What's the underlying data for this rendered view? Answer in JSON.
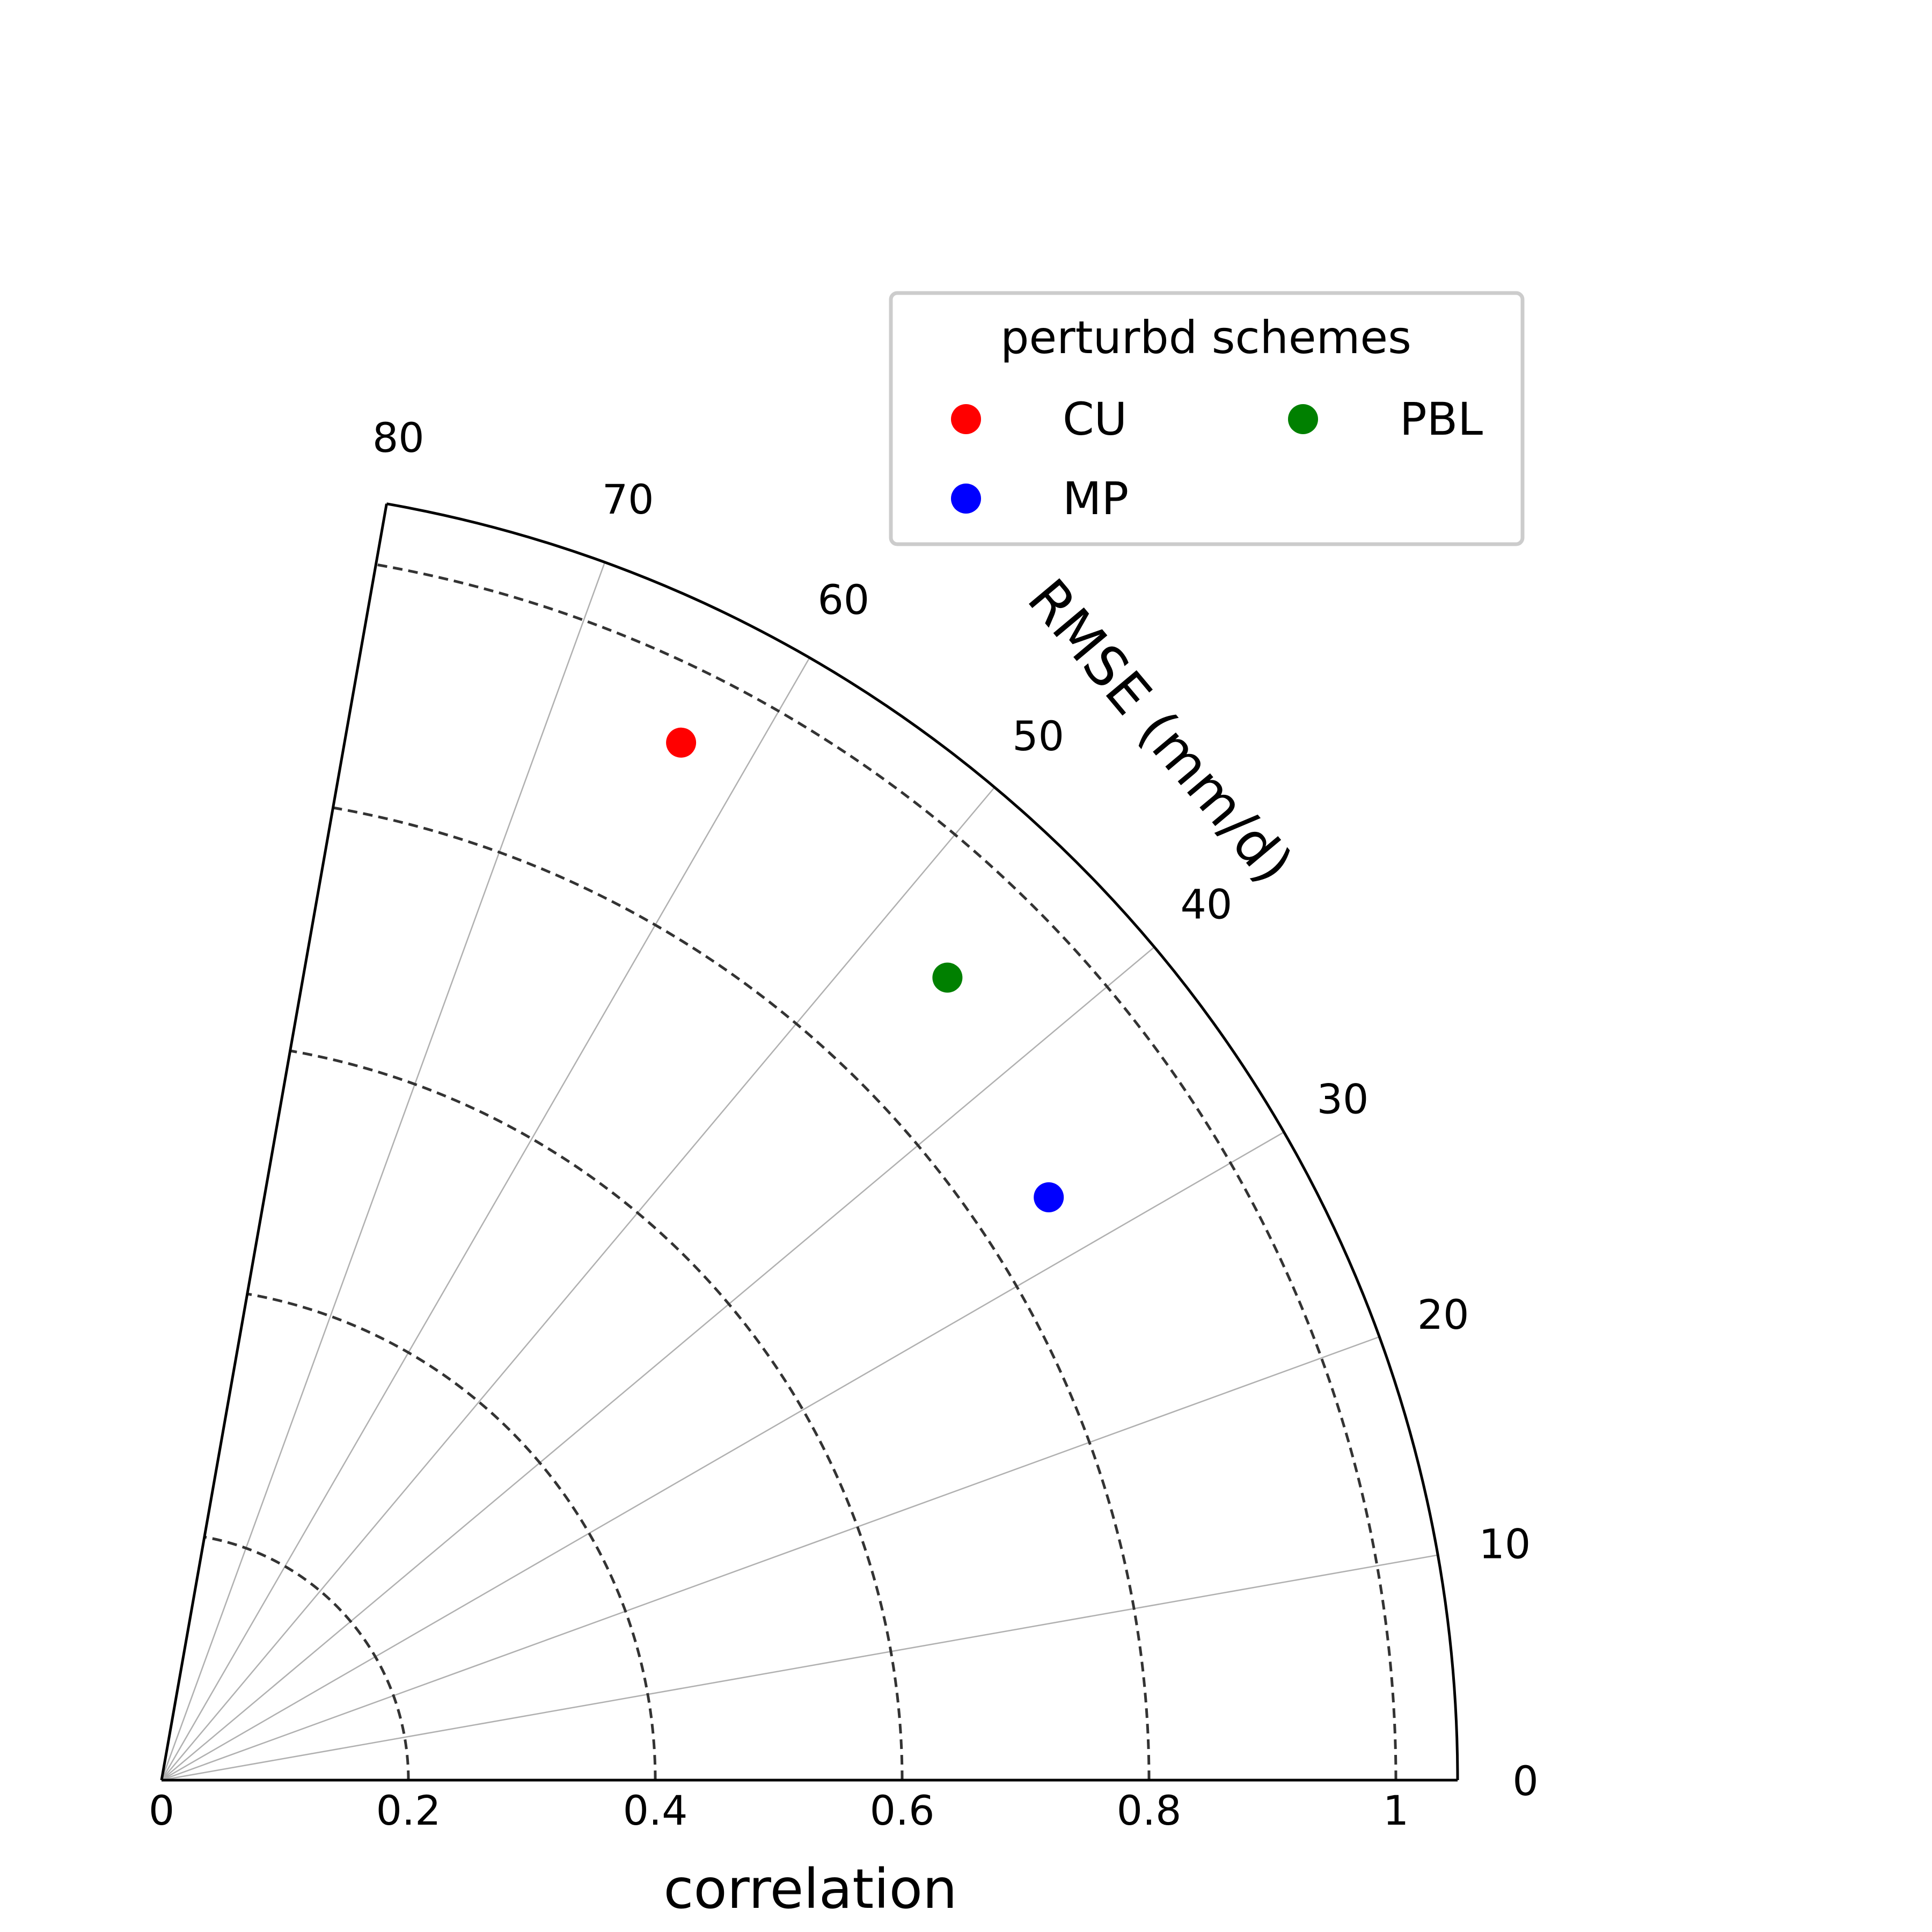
{
  "chart_data": {
    "type": "scatter",
    "projection": "polar quadrant",
    "xlabel": "correlation",
    "arc_axis_label": "RMSE (mm/d)",
    "radial_range": [
      0,
      1.05
    ],
    "angular_range_deg": [
      0,
      80
    ],
    "angular_ticks": [
      {
        "value": 0,
        "label": "0"
      },
      {
        "value": 10,
        "label": "10"
      },
      {
        "value": 20,
        "label": "20"
      },
      {
        "value": 30,
        "label": "30"
      },
      {
        "value": 40,
        "label": "40"
      },
      {
        "value": 50,
        "label": "50"
      },
      {
        "value": 60,
        "label": "60"
      },
      {
        "value": 70,
        "label": "70"
      },
      {
        "value": 80,
        "label": "80"
      }
    ],
    "radial_ticks": [
      {
        "value": 0,
        "label": "0"
      },
      {
        "value": 0.2,
        "label": "0.2"
      },
      {
        "value": 0.4,
        "label": "0.4"
      },
      {
        "value": 0.6,
        "label": "0.6"
      },
      {
        "value": 0.8,
        "label": "0.8"
      },
      {
        "value": 1,
        "label": "1"
      }
    ],
    "dashed_circles": [
      0.2,
      0.4,
      0.6,
      0.8,
      1.0
    ],
    "grid": true,
    "legend": {
      "title": "perturbd schemes",
      "placement": "top-right",
      "columns": 2
    },
    "series": [
      {
        "name": "CU",
        "color": "#ff0000",
        "points": [
          {
            "r": 0.94,
            "angle": 63.4
          }
        ]
      },
      {
        "name": "MP",
        "color": "#0000ff",
        "points": [
          {
            "r": 0.86,
            "angle": 33.3
          }
        ]
      },
      {
        "name": "PBL",
        "color": "#008000",
        "points": [
          {
            "r": 0.91,
            "angle": 45.6
          }
        ]
      }
    ]
  }
}
